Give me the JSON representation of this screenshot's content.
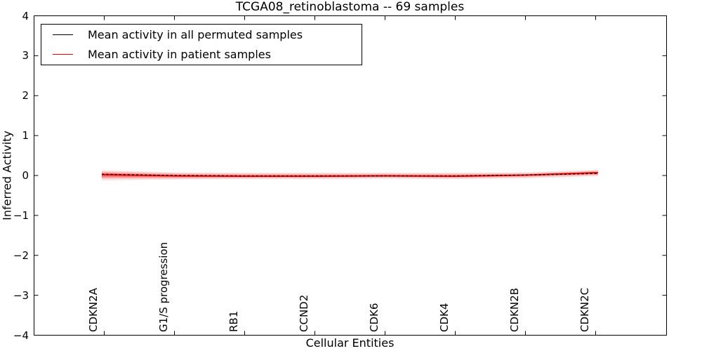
{
  "chart_data": {
    "type": "line",
    "title": "TCGA08_retinoblastoma -- 69 samples",
    "xlabel": "Cellular Entities",
    "ylabel": "Inferred Activity",
    "ylim": [
      -4,
      4
    ],
    "grid": false,
    "legend_position": "upper left",
    "tick_direction": "in",
    "categories": [
      "CDKN2A",
      "G1/S progression",
      "RB1",
      "CCND2",
      "CDK6",
      "CDK4",
      "CDKN2B",
      "CDKN2C"
    ],
    "yticks": {
      "values": [
        4,
        3,
        2,
        1,
        0,
        -1,
        -2,
        -3,
        -4
      ],
      "labels": [
        "4",
        "3",
        "2",
        "1",
        "0",
        "−1",
        "−2",
        "−3",
        "−4"
      ]
    },
    "series": [
      {
        "name": "Mean activity in all permuted samples",
        "color": "#000000",
        "style": "dashed",
        "values": [
          0.03,
          0.0,
          -0.01,
          -0.01,
          -0.01,
          -0.01,
          0.01,
          0.05
        ]
      },
      {
        "name": "Mean activity in patient samples",
        "color": "#ff0000",
        "style": "solid",
        "values": [
          0.02,
          -0.01,
          -0.02,
          -0.02,
          -0.01,
          -0.02,
          0.01,
          0.07
        ]
      }
    ],
    "bands": [
      {
        "name": "patient-confidence-outer",
        "color": "#ff0000",
        "opacity": 0.13,
        "upper": [
          0.13,
          0.08,
          0.07,
          0.07,
          0.07,
          0.07,
          0.08,
          0.14
        ],
        "lower": [
          -0.12,
          -0.1,
          -0.09,
          -0.09,
          -0.08,
          -0.09,
          -0.07,
          -0.02
        ]
      },
      {
        "name": "patient-confidence-mid",
        "color": "#ff0000",
        "opacity": 0.22,
        "upper": [
          0.09,
          0.05,
          0.04,
          0.04,
          0.04,
          0.04,
          0.05,
          0.11
        ],
        "lower": [
          -0.07,
          -0.07,
          -0.06,
          -0.06,
          -0.05,
          -0.06,
          -0.04,
          0.01
        ]
      },
      {
        "name": "patient-confidence-inner",
        "color": "#ff0000",
        "opacity": 0.32,
        "upper": [
          0.06,
          0.02,
          0.01,
          0.01,
          0.02,
          0.01,
          0.03,
          0.09
        ],
        "lower": [
          -0.04,
          -0.04,
          -0.04,
          -0.04,
          -0.03,
          -0.04,
          -0.01,
          0.04
        ]
      }
    ]
  }
}
